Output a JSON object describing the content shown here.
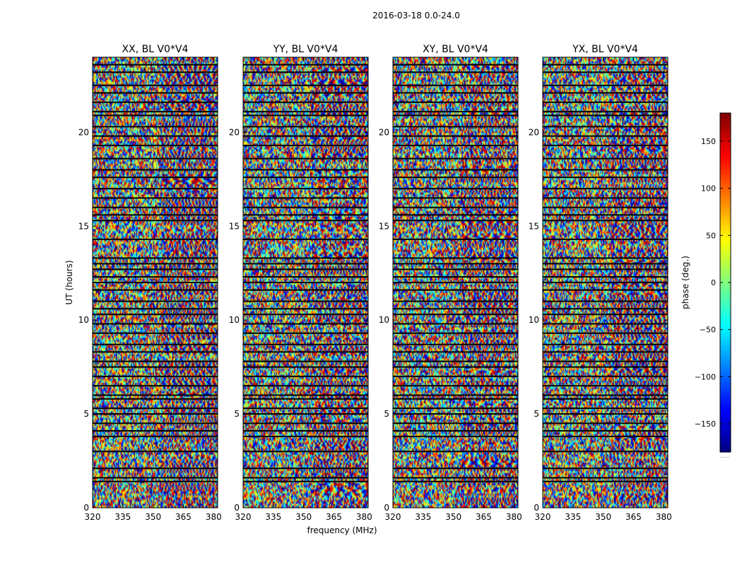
{
  "figure": {
    "suptitle": "2016-03-18 0.0-24.0",
    "xlabel": "frequency (MHz)",
    "ylabel": "UT (hours)",
    "colorbar_label": "phase (deg.)",
    "colorbar_footer": "......"
  },
  "chart_data": [
    {
      "type": "heatmap",
      "title": "XX, BL V0*V4",
      "xlabel": "frequency (MHz)",
      "ylabel": "UT (hours)",
      "xlim": [
        320,
        382
      ],
      "ylim": [
        0,
        24
      ],
      "x_ticks": [
        320,
        335,
        350,
        365,
        380
      ],
      "y_ticks": [
        0,
        5,
        10,
        15,
        20
      ],
      "z_range": [
        -180,
        180
      ],
      "colormap": "jet",
      "seed": 11
    },
    {
      "type": "heatmap",
      "title": "YY, BL V0*V4",
      "xlabel": "frequency (MHz)",
      "ylabel": "UT (hours)",
      "xlim": [
        320,
        382
      ],
      "ylim": [
        0,
        24
      ],
      "x_ticks": [
        320,
        335,
        350,
        365,
        380
      ],
      "y_ticks": [
        0,
        5,
        10,
        15,
        20
      ],
      "z_range": [
        -180,
        180
      ],
      "colormap": "jet",
      "seed": 23
    },
    {
      "type": "heatmap",
      "title": "XY, BL V0*V4",
      "xlabel": "frequency (MHz)",
      "ylabel": "UT (hours)",
      "xlim": [
        320,
        382
      ],
      "ylim": [
        0,
        24
      ],
      "x_ticks": [
        320,
        335,
        350,
        365,
        380
      ],
      "y_ticks": [
        0,
        5,
        10,
        15,
        20
      ],
      "z_range": [
        -180,
        180
      ],
      "colormap": "jet",
      "seed": 37
    },
    {
      "type": "heatmap",
      "title": "YX, BL V0*V4",
      "xlabel": "frequency (MHz)",
      "ylabel": "UT (hours)",
      "xlim": [
        320,
        382
      ],
      "ylim": [
        0,
        24
      ],
      "x_ticks": [
        320,
        335,
        350,
        365,
        380
      ],
      "y_ticks": [
        0,
        5,
        10,
        15,
        20
      ],
      "z_range": [
        -180,
        180
      ],
      "colormap": "jet",
      "seed": 53
    }
  ],
  "colorbar": {
    "range": [
      -180,
      180
    ],
    "ticks": [
      150,
      100,
      50,
      0,
      -50,
      -100,
      -150
    ],
    "tick_labels": [
      "150",
      "100",
      "50",
      "0",
      "−50",
      "−100",
      "−150"
    ],
    "colormap": "jet"
  },
  "flag_band_hours": [
    1.4,
    1.6,
    2.1,
    3.0,
    3.8,
    4.1,
    4.5,
    5.0,
    5.3,
    5.8,
    6.0,
    6.5,
    7.0,
    7.5,
    7.8,
    8.3,
    8.7,
    9.3,
    9.8,
    10.3,
    10.6,
    11.0,
    11.6,
    12.0,
    12.3,
    12.7,
    13.0,
    13.3,
    14.3,
    15.3,
    15.6,
    16.0,
    16.5,
    17.0,
    17.6,
    18.0,
    18.6,
    19.3,
    19.8,
    20.3,
    20.9,
    21.1,
    21.6,
    22.1,
    22.5,
    23.2,
    23.6
  ]
}
